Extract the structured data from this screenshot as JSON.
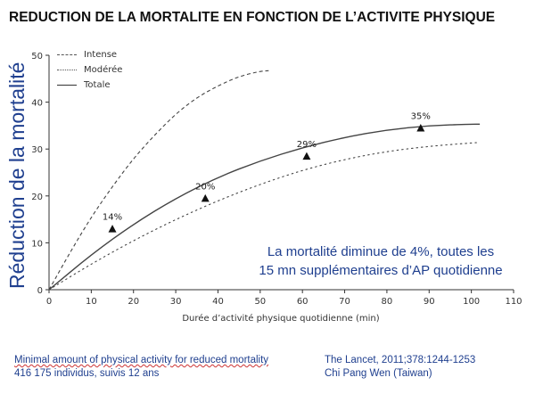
{
  "title": "REDUCTION DE LA MORTALITE EN FONCTION DE L’ACTIVITE PHYSIQUE",
  "annotation": {
    "line1": "La mortalité  diminue de 4%, toutes les",
    "line2": "15 mn supplémentaires d’AP quotidienne"
  },
  "footer": {
    "left_line1": "Minimal amount of physical activity for reduced mortality",
    "left_line2": "416 175 individus, suivis 12 ans",
    "right_line1": "The Lancet,   2011;378:1244-1253",
    "right_line2": "Chi Pang Wen (Taiwan)"
  },
  "colors": {
    "title": "#111111",
    "blue_text": "#1f3f8f",
    "series": "#444444",
    "axis": "#333333"
  },
  "chart_data": {
    "type": "line",
    "xlabel": "Durée d’activité physique quotidienne (min)",
    "ylabel": "Réduction de la mortalité",
    "xlim": [
      0,
      110
    ],
    "ylim": [
      0,
      50
    ],
    "xticks": [
      0,
      10,
      20,
      30,
      40,
      50,
      60,
      70,
      80,
      90,
      100,
      110
    ],
    "yticks": [
      0,
      10,
      20,
      30,
      40,
      50
    ],
    "grid": false,
    "legend_position": "top-left",
    "series": [
      {
        "name": "Intense",
        "style": "dashed",
        "x": [
          0,
          5,
          10,
          15,
          20,
          25,
          30,
          35,
          40,
          45,
          50,
          52
        ],
        "y": [
          0,
          8,
          15.5,
          22,
          28,
          33,
          37.5,
          41,
          43.5,
          45.5,
          46.6,
          46.7
        ]
      },
      {
        "name": "Modérée",
        "style": "dotted",
        "x": [
          0,
          10,
          20,
          30,
          40,
          50,
          60,
          70,
          80,
          90,
          100,
          102
        ],
        "y": [
          0,
          5.5,
          10.5,
          15,
          19,
          22.5,
          25.5,
          27.8,
          29.5,
          30.6,
          31.3,
          31.4
        ]
      },
      {
        "name": "Totale",
        "style": "solid",
        "x": [
          0,
          10,
          20,
          30,
          40,
          50,
          60,
          70,
          80,
          90,
          100,
          102
        ],
        "y": [
          0,
          7.5,
          14,
          19.5,
          24,
          27.5,
          30.3,
          32.5,
          34.1,
          35,
          35.3,
          35.3
        ]
      }
    ],
    "markers": [
      {
        "x": 15,
        "y": 13,
        "label": "14%"
      },
      {
        "x": 37,
        "y": 19.5,
        "label": "20%"
      },
      {
        "x": 61,
        "y": 28.5,
        "label": "29%"
      },
      {
        "x": 88,
        "y": 34.5,
        "label": "35%"
      }
    ]
  }
}
